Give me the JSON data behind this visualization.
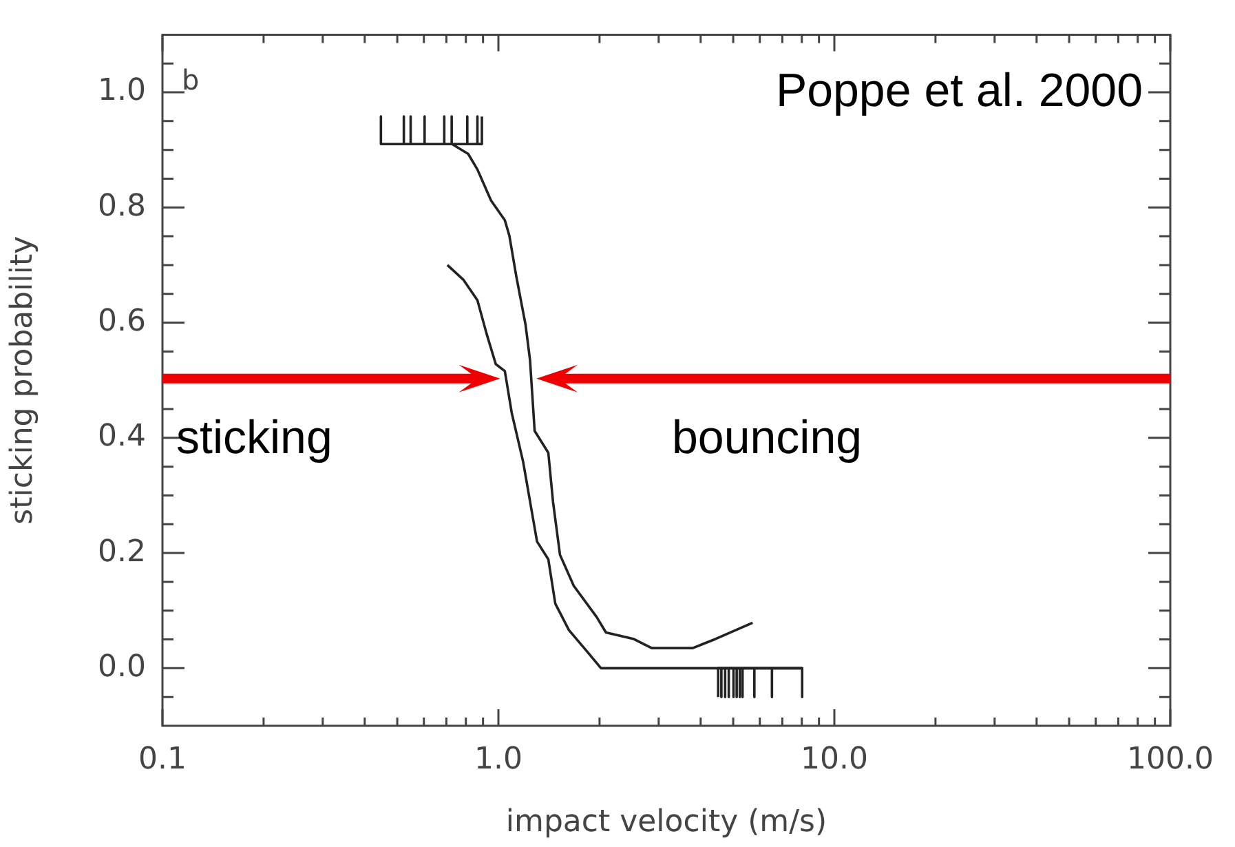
{
  "chart_data": {
    "type": "line",
    "xlabel": "impact velocity (m/s)",
    "ylabel": "sticking probability",
    "log": "x",
    "marker": "none",
    "xlim": [
      0.1,
      100
    ],
    "ylim": [
      -0.1,
      1.1
    ],
    "xticks": [
      {
        "value": 0.1,
        "label": "0.1"
      },
      {
        "value": 0.2,
        "label": null
      },
      {
        "value": 0.3,
        "label": null
      },
      {
        "value": 0.4,
        "label": null
      },
      {
        "value": 0.5,
        "label": null
      },
      {
        "value": 0.6,
        "label": null
      },
      {
        "value": 0.7,
        "label": null
      },
      {
        "value": 0.8,
        "label": null
      },
      {
        "value": 0.9,
        "label": null
      },
      {
        "value": 1,
        "label": "1.0"
      },
      {
        "value": 2,
        "label": null
      },
      {
        "value": 3,
        "label": null
      },
      {
        "value": 4,
        "label": null
      },
      {
        "value": 5,
        "label": null
      },
      {
        "value": 6,
        "label": null
      },
      {
        "value": 7,
        "label": null
      },
      {
        "value": 8,
        "label": null
      },
      {
        "value": 9,
        "label": null
      },
      {
        "value": 10,
        "label": "10.0"
      },
      {
        "value": 20,
        "label": null
      },
      {
        "value": 30,
        "label": null
      },
      {
        "value": 40,
        "label": null
      },
      {
        "value": 50,
        "label": null
      },
      {
        "value": 60,
        "label": null
      },
      {
        "value": 70,
        "label": null
      },
      {
        "value": 80,
        "label": null
      },
      {
        "value": 90,
        "label": null
      },
      {
        "value": 100,
        "label": "100.0"
      }
    ],
    "yticks": [
      {
        "value": -0.05,
        "label": null
      },
      {
        "value": 0,
        "label": "0.0"
      },
      {
        "value": 0.05,
        "label": null
      },
      {
        "value": 0.1,
        "label": null
      },
      {
        "value": 0.15,
        "label": null
      },
      {
        "value": 0.2,
        "label": "0.2"
      },
      {
        "value": 0.25,
        "label": null
      },
      {
        "value": 0.3,
        "label": null
      },
      {
        "value": 0.35,
        "label": null
      },
      {
        "value": 0.4,
        "label": "0.4"
      },
      {
        "value": 0.45,
        "label": null
      },
      {
        "value": 0.5,
        "label": null
      },
      {
        "value": 0.55,
        "label": null
      },
      {
        "value": 0.6,
        "label": "0.6"
      },
      {
        "value": 0.65,
        "label": null
      },
      {
        "value": 0.7,
        "label": null
      },
      {
        "value": 0.75,
        "label": null
      },
      {
        "value": 0.8,
        "label": "0.8"
      },
      {
        "value": 0.85,
        "label": null
      },
      {
        "value": 0.9,
        "label": null
      },
      {
        "value": 0.95,
        "label": null
      },
      {
        "value": 1,
        "label": "1.0"
      },
      {
        "value": 1.05,
        "label": null
      }
    ],
    "annotations": [
      "b",
      "Poppe et al. 2000",
      "sticking",
      "bouncing"
    ],
    "series": [
      {
        "color": "#222222",
        "x": [
          0.728,
          0.813,
          0.866,
          0.951,
          1.045,
          1.078,
          1.13,
          1.204,
          1.242,
          1.282,
          1.408,
          1.454,
          1.525,
          1.676,
          1.96,
          2.09,
          2.52,
          2.86,
          3.79,
          4.44,
          5.71
        ],
        "values": [
          0.91,
          0.893,
          0.866,
          0.812,
          0.778,
          0.751,
          0.681,
          0.597,
          0.535,
          0.412,
          0.374,
          0.289,
          0.197,
          0.143,
          0.089,
          0.062,
          0.051,
          0.035,
          0.035,
          0.051,
          0.079
        ]
      },
      {
        "color": "#222222",
        "x": [
          0.705,
          0.788,
          0.866,
          0.921,
          0.982,
          1.045,
          1.096,
          1.185,
          1.303,
          1.408,
          1.477,
          1.622,
          1.842,
          2.02,
          8.02
        ],
        "values": [
          0.7,
          0.674,
          0.639,
          0.582,
          0.528,
          0.516,
          0.443,
          0.358,
          0.22,
          0.189,
          0.112,
          0.066,
          0.028,
          0,
          0
        ]
      },
      {
        "color": "#222222",
        "x": [
          0.447,
          0.447,
          0.523,
          0.523,
          0.523,
          0.548,
          0.548,
          0.548,
          0.603,
          0.603,
          0.603,
          0.69,
          0.69,
          0.69,
          0.726,
          0.726,
          0.726,
          0.808,
          0.808,
          0.808,
          0.866,
          0.866,
          0.866,
          0.893,
          0.893
        ],
        "values": [
          0.958,
          0.91,
          0.91,
          0.958,
          0.91,
          0.91,
          0.958,
          0.91,
          0.91,
          0.958,
          0.91,
          0.91,
          0.958,
          0.91,
          0.91,
          0.958,
          0.91,
          0.91,
          0.958,
          0.91,
          0.91,
          0.958,
          0.91,
          0.91,
          0.958
        ]
      },
      {
        "color": "#222222",
        "x": [
          4.51,
          4.51,
          4.61,
          4.61,
          4.61,
          4.73,
          4.73,
          4.73,
          4.85,
          4.85,
          4.85,
          5.01,
          5.01,
          5.01,
          5.12,
          5.12,
          5.12,
          5.23,
          5.23,
          5.23,
          5.33,
          5.33,
          5.33,
          5.78,
          5.78,
          5.78,
          6.52,
          6.52,
          6.52,
          8.02,
          8.02
        ],
        "values": [
          -0.05,
          0,
          0,
          -0.05,
          0,
          0,
          -0.05,
          0,
          0,
          -0.05,
          0,
          0,
          -0.05,
          0,
          0,
          -0.05,
          0,
          0,
          -0.05,
          0,
          0,
          -0.05,
          0,
          0,
          -0.05,
          0,
          0,
          -0.05,
          0,
          0,
          -0.05
        ]
      }
    ]
  }
}
